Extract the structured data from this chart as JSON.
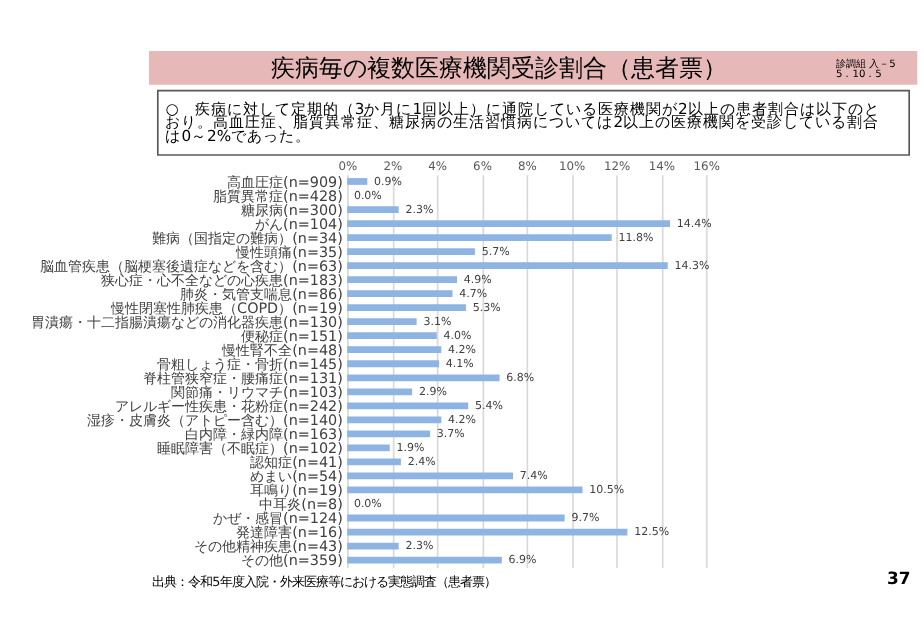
{
  "chart_data": {
    "type": "bar",
    "orientation": "horizontal",
    "title": "疾病毎の複数医療機関受診割合（患者票）",
    "subtitle": "○　疾病に対して定期的（3か月に1回以上）に通院している医療機関が2以上の患者割合は以下のとおり。高血圧症、脂質異常症、糖尿病の生活習慣病については2以上の医療機関を受診している割合は0～2%であった。",
    "annotations": [
      "診調組 入－5\n5．10．5",
      "出典：令和5年度入院・外来医療等における実態調査（患者票）",
      "37"
    ],
    "categories": [
      "高血圧症(n=909)",
      "脂質異常症(n=428)",
      "糖尿病(n=300)",
      "がん(n=104)",
      "難病（国指定の難病）(n=34)",
      "慢性頭痛(n=35)",
      "脳血管疾患（脳梗塞後遺症などを含む）(n=63)",
      "狭心症・心不全などの心疾患(n=183)",
      "肺炎・気管支喘息(n=86)",
      "慢性閉塞性肺疾患（COPD）(n=19)",
      "胃潰瘍・十二指腸潰瘍などの消化器疾患(n=130)",
      "便秘症(n=151)",
      "慢性腎不全(n=48)",
      "骨粗しょう症・骨折(n=145)",
      "脊柱管狭窄症・腰痛症(n=131)",
      "関節痛・リウマチ(n=103)",
      "アレルギー性疾患・花粉症(n=242)",
      "湿疹・皮膚炎（アトピー含む）(n=140)",
      "白内障・緑内障(n=163)",
      "睡眠障害（不眠症）(n=102)",
      "認知症(n=41)",
      "めまい(n=54)",
      "耳鳴り(n=19)",
      "中耳炎(n=8)",
      "かぜ・感冒(n=124)",
      "発達障害(n=16)",
      "その他精神疾患(n=43)",
      "その他(n=359)"
    ],
    "values": [
      0.9,
      0.0,
      2.3,
      14.4,
      11.8,
      5.7,
      14.3,
      4.9,
      4.7,
      5.3,
      3.1,
      4.0,
      4.2,
      4.1,
      6.8,
      2.9,
      5.4,
      4.2,
      3.7,
      1.9,
      2.4,
      7.4,
      10.5,
      0.0,
      9.7,
      12.5,
      2.3,
      6.9
    ],
    "value_labels": [
      "0.9%",
      "0.0%",
      "2.3%",
      "14.4%",
      "11.8%",
      "5.7%",
      "14.3%",
      "4.9%",
      "4.7%",
      "5.3%",
      "3.1%",
      "4.0%",
      "4.2%",
      "4.1%",
      "6.8%",
      "2.9%",
      "5.4%",
      "4.2%",
      "3.7%",
      "1.9%",
      "2.4%",
      "7.4%",
      "10.5%",
      "0.0%",
      "9.7%",
      "12.5%",
      "2.3%",
      "6.9%"
    ],
    "color": "#8eb4e3",
    "xlim": [
      0,
      16
    ],
    "xticks": [
      {
        "value": 0,
        "label": "0%"
      },
      {
        "value": 2,
        "label": "2%"
      },
      {
        "value": 4,
        "label": "4%"
      },
      {
        "value": 6,
        "label": "6%"
      },
      {
        "value": 8,
        "label": "8%"
      },
      {
        "value": 10,
        "label": "10%"
      },
      {
        "value": 12,
        "label": "12%"
      },
      {
        "value": 14,
        "label": "14%"
      },
      {
        "value": 16,
        "label": "16%"
      }
    ],
    "grid": "x"
  }
}
